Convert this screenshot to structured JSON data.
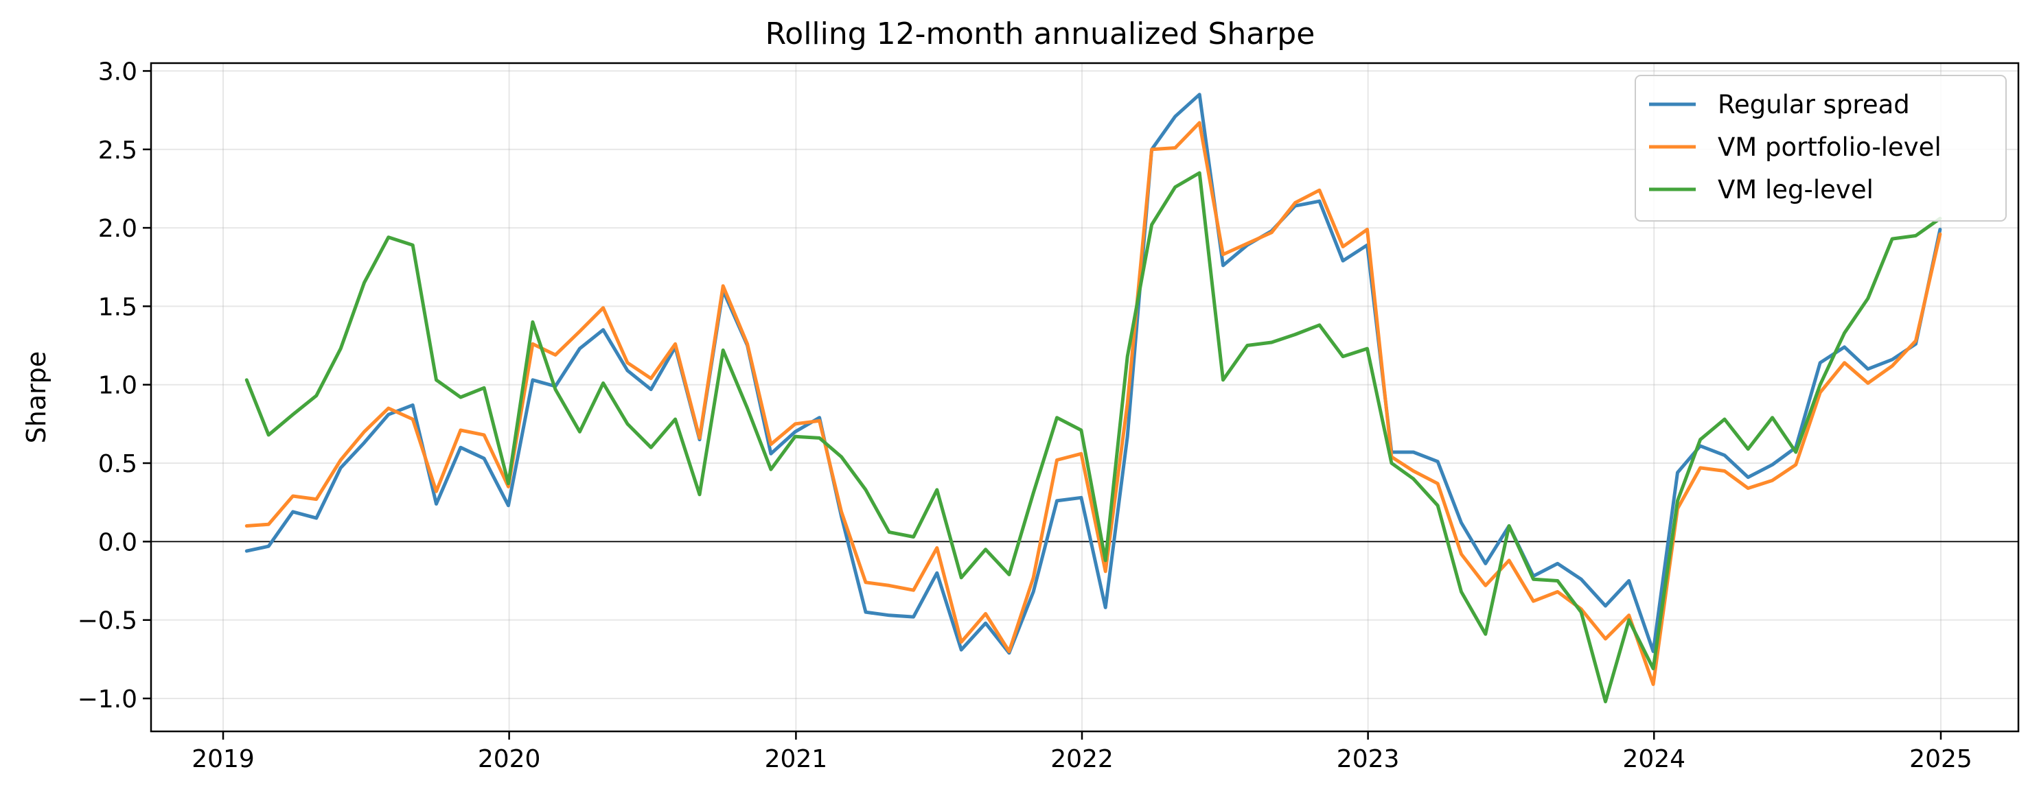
{
  "chart_data": {
    "type": "line",
    "title": "Rolling 12-month annualized Sharpe",
    "xlabel": "",
    "ylabel": "Sharpe",
    "x_type": "date",
    "xlim": [
      "2018-10-01",
      "2025-04-10"
    ],
    "ylim": [
      -1.21,
      3.05
    ],
    "x_ticks": [
      {
        "date": "2019-01-01",
        "label": "2019"
      },
      {
        "date": "2020-01-01",
        "label": "2020"
      },
      {
        "date": "2021-01-01",
        "label": "2021"
      },
      {
        "date": "2022-01-01",
        "label": "2022"
      },
      {
        "date": "2023-01-01",
        "label": "2023"
      },
      {
        "date": "2024-01-01",
        "label": "2024"
      },
      {
        "date": "2025-01-01",
        "label": "2025"
      }
    ],
    "y_ticks": [
      {
        "value": 3.0,
        "label": "3.0"
      },
      {
        "value": 2.5,
        "label": "2.5"
      },
      {
        "value": 2.0,
        "label": "2.0"
      },
      {
        "value": 1.5,
        "label": "1.5"
      },
      {
        "value": 1.0,
        "label": "1.0"
      },
      {
        "value": 0.5,
        "label": "0.5"
      },
      {
        "value": 0.0,
        "label": "0.0"
      },
      {
        "value": -0.5,
        "label": "−0.5"
      },
      {
        "value": -1.0,
        "label": "−1.0"
      }
    ],
    "grid": true,
    "zero_line": true,
    "legend": {
      "placement": "top-right"
    },
    "x": [
      "2019-01-31",
      "2019-02-28",
      "2019-03-31",
      "2019-04-30",
      "2019-05-31",
      "2019-06-30",
      "2019-07-31",
      "2019-08-31",
      "2019-09-30",
      "2019-10-31",
      "2019-11-30",
      "2019-12-31",
      "2020-01-31",
      "2020-02-29",
      "2020-03-31",
      "2020-04-30",
      "2020-05-31",
      "2020-06-30",
      "2020-07-31",
      "2020-08-31",
      "2020-09-30",
      "2020-10-31",
      "2020-11-30",
      "2020-12-31",
      "2021-01-31",
      "2021-02-28",
      "2021-03-31",
      "2021-04-30",
      "2021-05-31",
      "2021-06-30",
      "2021-07-31",
      "2021-08-31",
      "2021-09-30",
      "2021-10-31",
      "2021-11-30",
      "2021-12-31",
      "2022-01-31",
      "2022-02-28",
      "2022-03-31",
      "2022-04-30",
      "2022-05-31",
      "2022-06-30",
      "2022-07-31",
      "2022-08-31",
      "2022-09-30",
      "2022-10-31",
      "2022-11-30",
      "2022-12-31",
      "2023-01-31",
      "2023-02-28",
      "2023-03-31",
      "2023-04-30",
      "2023-05-31",
      "2023-06-30",
      "2023-07-31",
      "2023-08-31",
      "2023-09-30",
      "2023-10-31",
      "2023-11-30",
      "2023-12-31",
      "2024-01-31",
      "2024-02-29",
      "2024-03-31",
      "2024-04-30",
      "2024-05-31",
      "2024-06-30",
      "2024-07-31",
      "2024-08-31",
      "2024-09-30",
      "2024-10-31",
      "2024-11-30",
      "2024-12-31"
    ],
    "series": [
      {
        "name": "Regular spread",
        "color": "#3a84b9",
        "values": [
          -0.06,
          -0.03,
          0.19,
          0.15,
          0.47,
          0.63,
          0.81,
          0.87,
          0.24,
          0.6,
          0.53,
          0.23,
          1.03,
          0.99,
          1.23,
          1.35,
          1.09,
          0.97,
          1.24,
          0.65,
          1.6,
          1.25,
          0.56,
          0.7,
          0.79,
          0.16,
          -0.45,
          -0.47,
          -0.48,
          -0.2,
          -0.69,
          -0.52,
          -0.71,
          -0.32,
          0.26,
          0.28,
          -0.42,
          0.67,
          2.5,
          2.71,
          2.85,
          1.76,
          1.89,
          1.98,
          2.14,
          2.17,
          1.79,
          1.89,
          0.57,
          0.57,
          0.51,
          0.12,
          -0.14,
          0.1,
          -0.22,
          -0.14,
          -0.24,
          -0.41,
          -0.25,
          -0.7,
          0.44,
          0.61,
          0.55,
          0.41,
          0.49,
          0.6,
          1.14,
          1.24,
          1.1,
          1.16,
          1.26,
          1.99
        ]
      },
      {
        "name": "VM portfolio-level",
        "color": "#ff8a2a",
        "values": [
          0.1,
          0.11,
          0.29,
          0.27,
          0.52,
          0.7,
          0.85,
          0.78,
          0.32,
          0.71,
          0.68,
          0.35,
          1.26,
          1.19,
          1.34,
          1.49,
          1.14,
          1.04,
          1.26,
          0.66,
          1.63,
          1.26,
          0.62,
          0.75,
          0.77,
          0.19,
          -0.26,
          -0.28,
          -0.31,
          -0.04,
          -0.64,
          -0.46,
          -0.7,
          -0.23,
          0.52,
          0.56,
          -0.19,
          0.88,
          2.5,
          2.51,
          2.67,
          1.83,
          1.9,
          1.97,
          2.16,
          2.24,
          1.88,
          1.99,
          0.54,
          0.45,
          0.37,
          -0.08,
          -0.28,
          -0.12,
          -0.38,
          -0.32,
          -0.43,
          -0.62,
          -0.47,
          -0.91,
          0.21,
          0.47,
          0.45,
          0.34,
          0.39,
          0.49,
          0.95,
          1.14,
          1.01,
          1.12,
          1.28,
          1.96
        ]
      },
      {
        "name": "VM leg-level",
        "color": "#44a43c",
        "values": [
          1.03,
          0.68,
          0.81,
          0.93,
          1.23,
          1.65,
          1.94,
          1.89,
          1.03,
          0.92,
          0.98,
          0.37,
          1.4,
          0.97,
          0.7,
          1.01,
          0.75,
          0.6,
          0.78,
          0.3,
          1.22,
          0.85,
          0.46,
          0.67,
          0.66,
          0.54,
          0.33,
          0.06,
          0.03,
          0.33,
          -0.23,
          -0.05,
          -0.21,
          0.31,
          0.79,
          0.71,
          -0.12,
          1.18,
          2.02,
          2.26,
          2.35,
          1.03,
          1.25,
          1.27,
          1.32,
          1.38,
          1.18,
          1.23,
          0.5,
          0.4,
          0.23,
          -0.32,
          -0.59,
          0.1,
          -0.24,
          -0.25,
          -0.45,
          -1.02,
          -0.5,
          -0.81,
          0.26,
          0.65,
          0.78,
          0.59,
          0.79,
          0.57,
          1.0,
          1.33,
          1.55,
          1.93,
          1.95,
          2.06
        ]
      }
    ]
  }
}
